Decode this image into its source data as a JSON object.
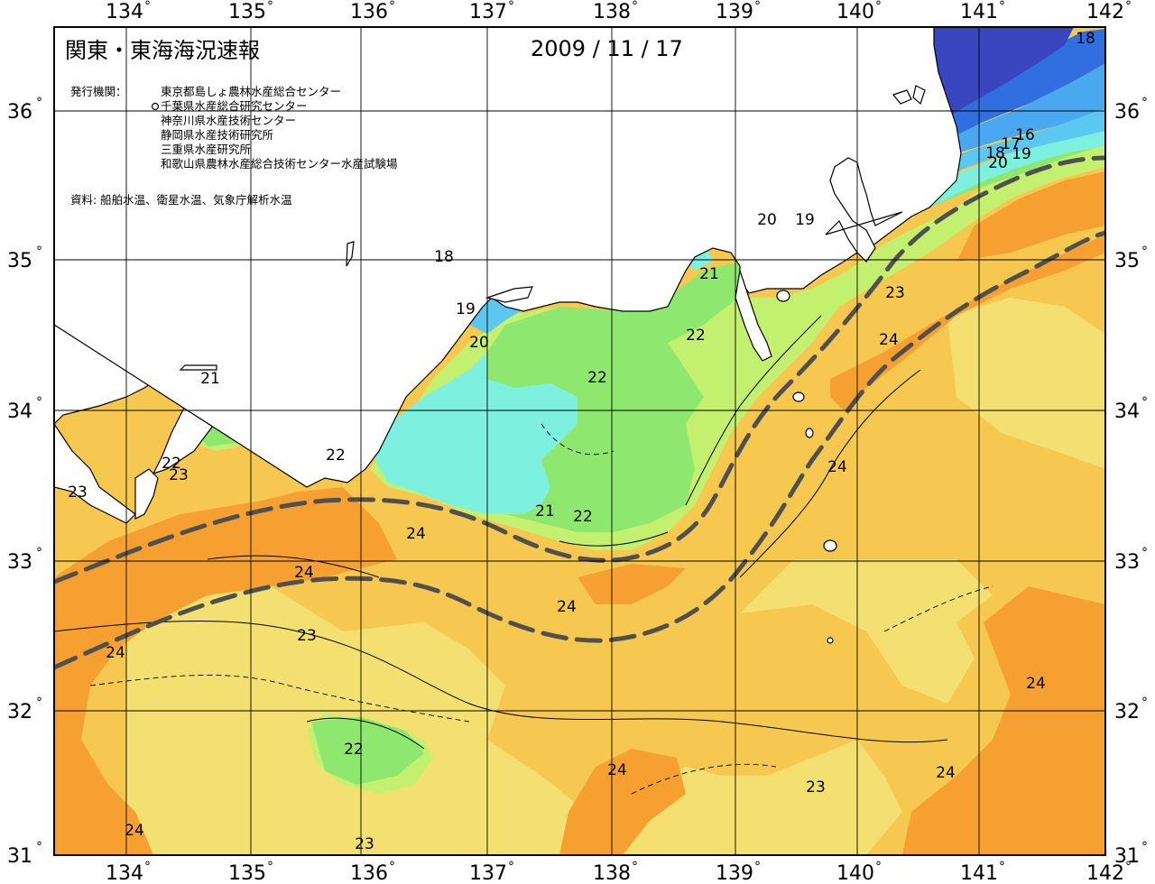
{
  "title": "関東・東海海況速報",
  "date": "2009 / 11 / 17",
  "publisher_label": "発行機関：",
  "publishers": [
    "東京都島しょ農林水産総合センター",
    "千葉県水産総合研究センター",
    "神奈川県水産技術センター",
    "静岡県水産技術研究所",
    "三重県水産研究所",
    "和歌山県農林水産総合技術センター水産試験場"
  ],
  "source": "資料: 船舶水温、衛星水温、気象庁解析水温",
  "longitudes": [
    "134",
    "135",
    "136",
    "137",
    "138",
    "139",
    "140",
    "141",
    "142"
  ],
  "latitudes": [
    "36",
    "35",
    "34",
    "33",
    "32",
    "31"
  ],
  "degree_symbol": "°",
  "colors": {
    "t16": "#3a46c0",
    "t17": "#2f6fe0",
    "t18": "#4aa8f0",
    "t19": "#5cc8f0",
    "t20": "#7ef0e0",
    "t21": "#8ee870",
    "t22": "#c4f070",
    "t23": "#f4e070",
    "t24": "#f6c850",
    "t25": "#f5a030",
    "land": "#ffffff",
    "kuroshio_axis": "#505050"
  },
  "contour_labels": [
    {
      "text": "18"
    },
    {
      "text": "16"
    },
    {
      "text": "18"
    },
    {
      "text": "17"
    },
    {
      "text": "19"
    },
    {
      "text": "20"
    },
    {
      "text": "20"
    },
    {
      "text": "19"
    },
    {
      "text": "18"
    },
    {
      "text": "19"
    },
    {
      "text": "20"
    },
    {
      "text": "21"
    },
    {
      "text": "22"
    },
    {
      "text": "22"
    },
    {
      "text": "23"
    },
    {
      "text": "24"
    },
    {
      "text": "21"
    },
    {
      "text": "22"
    },
    {
      "text": "22"
    },
    {
      "text": "23"
    },
    {
      "text": "23"
    },
    {
      "text": "24"
    },
    {
      "text": "24"
    },
    {
      "text": "24"
    },
    {
      "text": "21"
    },
    {
      "text": "22"
    },
    {
      "text": "24"
    },
    {
      "text": "23"
    },
    {
      "text": "24"
    },
    {
      "text": "22"
    },
    {
      "text": "24"
    },
    {
      "text": "23"
    },
    {
      "text": "24"
    },
    {
      "text": "24"
    },
    {
      "text": "23"
    },
    {
      "text": "24"
    }
  ]
}
